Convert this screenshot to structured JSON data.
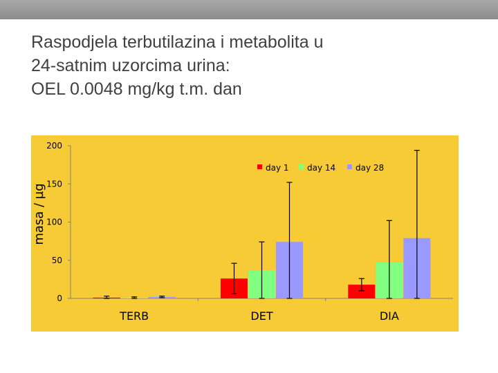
{
  "header": {
    "title_lines": [
      "Raspodjela terbutilazina i metabolita u",
      "24-satnim uzorcima urina:",
      "OEL 0.0048 mg/kg t.m. dan"
    ]
  },
  "colors": {
    "plot_background": "#f7cb35",
    "top_bar": "#999999",
    "title_text": "#404040",
    "error_bar": "#000000"
  },
  "chart_data": {
    "type": "bar",
    "categories": [
      "TERB",
      "DET",
      "DIA"
    ],
    "ylabel": "masa / µg",
    "xlabel": "",
    "ylim": [
      0,
      200
    ],
    "yticks": [
      0,
      50,
      100,
      150,
      200
    ],
    "legend_position": "top-right",
    "grid": false,
    "series": [
      {
        "name": "day 1",
        "color": "#ff0000",
        "values": [
          1,
          26,
          18
        ],
        "error": [
          2,
          20,
          8
        ]
      },
      {
        "name": "day 14",
        "color": "#80ff80",
        "values": [
          1,
          37,
          47
        ],
        "error": [
          1,
          37,
          55
        ]
      },
      {
        "name": "day 28",
        "color": "#9999ff",
        "values": [
          2,
          74,
          79
        ],
        "error": [
          1,
          78,
          115
        ]
      }
    ]
  }
}
